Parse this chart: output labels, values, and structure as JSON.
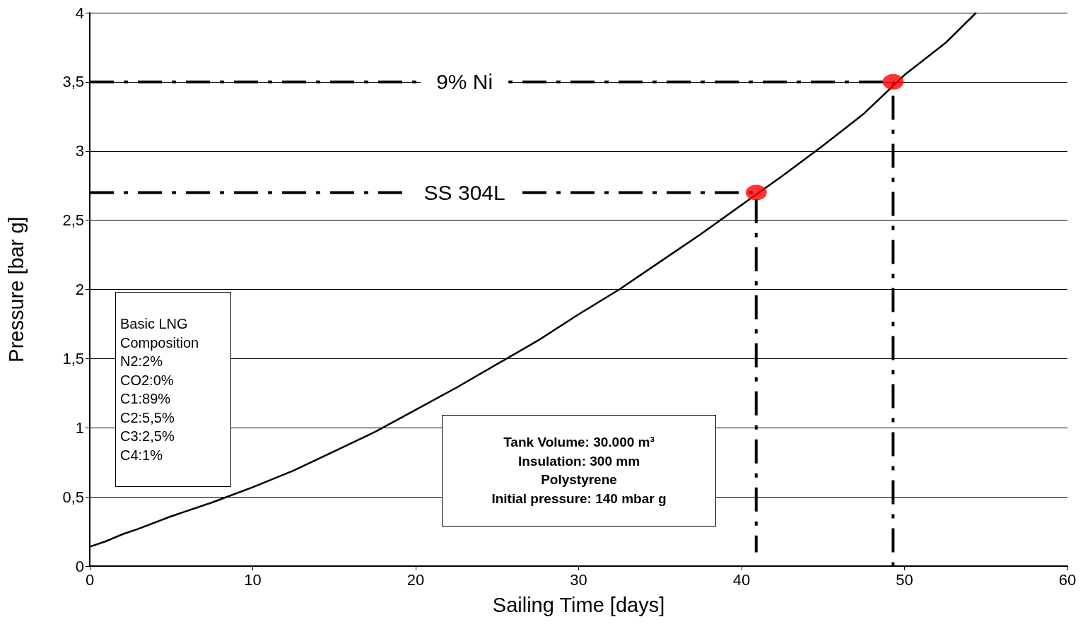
{
  "chart_data": {
    "type": "line",
    "xlabel": "Sailing Time [days]",
    "ylabel": "Pressure [bar g]",
    "xlim": [
      0,
      60
    ],
    "xticks": [
      0,
      10,
      20,
      30,
      40,
      50,
      60
    ],
    "ylim": [
      0,
      4
    ],
    "yticks": [
      0,
      {
        "value": 0.5,
        "label": "0,5"
      },
      1,
      {
        "value": 1.5,
        "label": "1,5"
      },
      2,
      {
        "value": 2.5,
        "label": "2,5"
      },
      3,
      {
        "value": 3.5,
        "label": "3,5"
      },
      4
    ],
    "grid": "y",
    "marker": "none",
    "series": [
      {
        "color": "#000000",
        "line_style": "solid",
        "x": [
          0,
          1,
          2,
          3,
          5,
          7.5,
          10,
          12.5,
          15,
          17.5,
          20,
          22.5,
          25,
          27.5,
          30,
          32.5,
          35,
          37.5,
          40,
          42.5,
          45,
          47.5,
          50,
          52.5,
          54.4
        ],
        "values": [
          0.14,
          0.18,
          0.23,
          0.27,
          0.36,
          0.46,
          0.57,
          0.69,
          0.83,
          0.97,
          1.13,
          1.29,
          1.46,
          1.63,
          1.82,
          2.0,
          2.2,
          2.4,
          2.61,
          2.82,
          3.04,
          3.27,
          3.55,
          3.78,
          4.0
        ]
      },
      {
        "type": "line",
        "color": "#000000",
        "line_style": "dashed",
        "x": [
          0,
          40.9,
          40.9
        ],
        "values": [
          2.7,
          2.7,
          0.1
        ]
      },
      {
        "type": "line",
        "color": "#000000",
        "line_style": "dashed",
        "x": [
          0,
          49.3,
          49.3
        ],
        "values": [
          3.5,
          3.5,
          0
        ]
      },
      {
        "type": "scatter",
        "color": "#ff0000",
        "marker": "circle",
        "x": [
          40.9,
          49.3
        ],
        "values": [
          2.7,
          3.5
        ]
      }
    ],
    "annotations": [
      {
        "text": "SS 304L",
        "x": 23,
        "y": 2.7
      },
      {
        "text": "9% Ni",
        "x": 23,
        "y": 3.5
      },
      "Basic LNG\nComposition\nN2:2%\nCO2:0%\nC1:89%\nC2:5,5%\nC3:2,5%\nC4:1%",
      "Tank Volume: 30.000 m³\nInsulation: 300 mm\nPolystyrene\nInitial pressure: 140 mbar g"
    ]
  }
}
